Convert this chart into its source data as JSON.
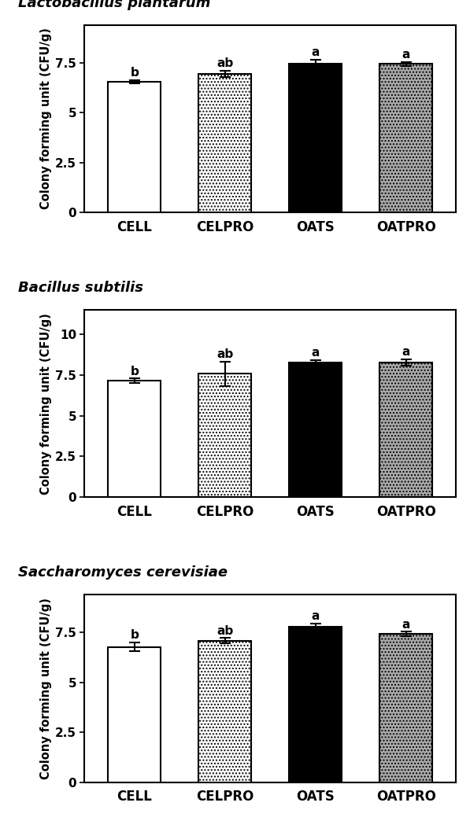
{
  "panels": [
    {
      "title": "Lactobacillus plantarum",
      "categories": [
        "CELL",
        "CELPRO",
        "OATS",
        "OATPRO"
      ],
      "values": [
        6.55,
        6.95,
        7.45,
        7.45
      ],
      "errors": [
        0.08,
        0.15,
        0.22,
        0.1
      ],
      "letters": [
        "b",
        "ab",
        "a",
        "a"
      ],
      "ylim": [
        0,
        9.4
      ],
      "yticks": [
        0,
        2.5,
        5,
        7.5
      ],
      "ytick_labels": [
        "0",
        "2.5",
        "5",
        "7.5"
      ],
      "bar_colors": [
        "white",
        "dotted_light",
        "black",
        "dotted_dark"
      ],
      "ylabel": "Colony forming unit (CFU/g)"
    },
    {
      "title": "Bacillus subtilis",
      "categories": [
        "CELL",
        "CELPRO",
        "OATS",
        "OATPRO"
      ],
      "values": [
        7.15,
        7.58,
        8.28,
        8.28
      ],
      "errors": [
        0.15,
        0.75,
        0.15,
        0.2
      ],
      "letters": [
        "b",
        "ab",
        "a",
        "a"
      ],
      "ylim": [
        0,
        11.5
      ],
      "yticks": [
        0,
        2.5,
        5,
        7.5,
        10
      ],
      "ytick_labels": [
        "0",
        "2.5",
        "5",
        "7.5",
        "10"
      ],
      "bar_colors": [
        "white",
        "dotted_light",
        "black",
        "dotted_dark"
      ],
      "ylabel": "Colony forming unit (CFU/g)"
    },
    {
      "title": "Saccharomyces cerevisiae",
      "categories": [
        "CELL",
        "CELPRO",
        "OATS",
        "OATPRO"
      ],
      "values": [
        6.78,
        7.1,
        7.78,
        7.42
      ],
      "errors": [
        0.22,
        0.12,
        0.18,
        0.12
      ],
      "letters": [
        "b",
        "ab",
        "a",
        "a"
      ],
      "ylim": [
        0,
        9.4
      ],
      "yticks": [
        0,
        2.5,
        5,
        7.5
      ],
      "ytick_labels": [
        "0",
        "2.5",
        "5",
        "7.5"
      ],
      "bar_colors": [
        "white",
        "dotted_light",
        "black",
        "dotted_dark"
      ],
      "ylabel": "Colony forming unit (CFU/g)"
    }
  ],
  "fig_width": 5.97,
  "fig_height": 10.58,
  "dpi": 100
}
